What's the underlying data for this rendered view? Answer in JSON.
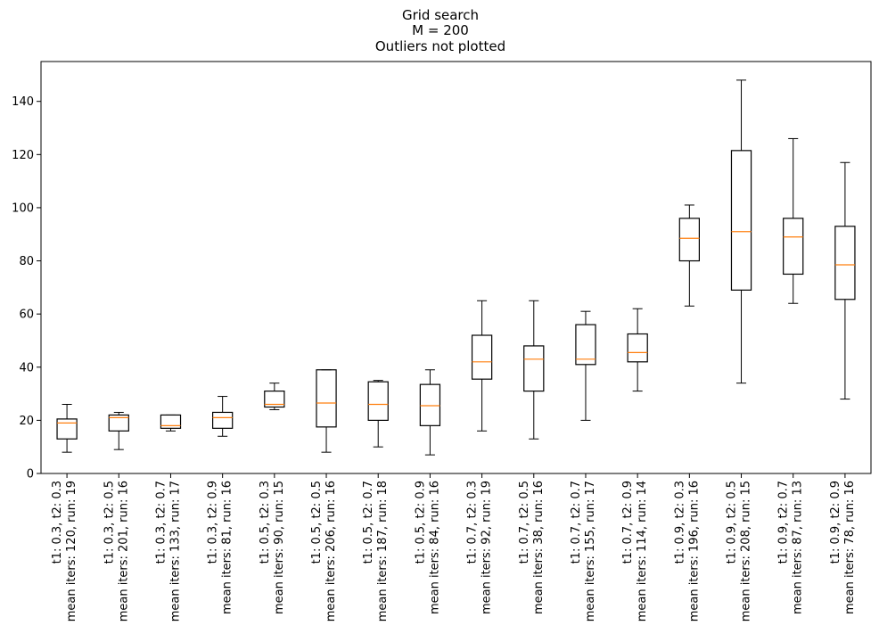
{
  "chart_data": {
    "type": "boxplot",
    "title_lines": [
      "Grid search",
      "M = 200",
      "Outliers not plotted"
    ],
    "xlabel": "",
    "ylabel": "",
    "ylim": [
      0,
      155
    ],
    "yticks": [
      0,
      20,
      40,
      60,
      80,
      100,
      120,
      140
    ],
    "grid": false,
    "legend": "none",
    "colors": {
      "box": "#000000",
      "median": "#ff7f0e",
      "whisker": "#000000"
    },
    "categories": [
      [
        "t1: 0.3, t2: 0.3",
        "mean iters: 120, run: 19"
      ],
      [
        "t1: 0.3, t2: 0.5",
        "mean iters: 201, run: 16"
      ],
      [
        "t1: 0.3, t2: 0.7",
        "mean iters: 133, run: 17"
      ],
      [
        "t1: 0.3, t2: 0.9",
        "mean iters: 81, run: 16"
      ],
      [
        "t1: 0.5, t2: 0.3",
        "mean iters: 90, run: 15"
      ],
      [
        "t1: 0.5, t2: 0.5",
        "mean iters: 206, run: 16"
      ],
      [
        "t1: 0.5, t2: 0.7",
        "mean iters: 187, run: 18"
      ],
      [
        "t1: 0.5, t2: 0.9",
        "mean iters: 84, run: 16"
      ],
      [
        "t1: 0.7, t2: 0.3",
        "mean iters: 92, run: 19"
      ],
      [
        "t1: 0.7, t2: 0.5",
        "mean iters: 38, run: 16"
      ],
      [
        "t1: 0.7, t2: 0.7",
        "mean iters: 155, run: 17"
      ],
      [
        "t1: 0.7, t2: 0.9",
        "mean iters: 114, run: 14"
      ],
      [
        "t1: 0.9, t2: 0.3",
        "mean iters: 196, run: 16"
      ],
      [
        "t1: 0.9, t2: 0.5",
        "mean iters: 208, run: 15"
      ],
      [
        "t1: 0.9, t2: 0.7",
        "mean iters: 87, run: 13"
      ],
      [
        "t1: 0.9, t2: 0.9",
        "mean iters: 78, run: 16"
      ]
    ],
    "boxes": [
      {
        "whislo": 8,
        "q1": 13,
        "med": 19,
        "q3": 20.5,
        "whishi": 26
      },
      {
        "whislo": 9,
        "q1": 16,
        "med": 21,
        "q3": 22,
        "whishi": 23
      },
      {
        "whislo": 16,
        "q1": 17,
        "med": 18,
        "q3": 22,
        "whishi": 22
      },
      {
        "whislo": 14,
        "q1": 17,
        "med": 21,
        "q3": 23,
        "whishi": 29
      },
      {
        "whislo": 24,
        "q1": 25,
        "med": 26,
        "q3": 31,
        "whishi": 34
      },
      {
        "whislo": 8,
        "q1": 17.5,
        "med": 26.5,
        "q3": 39,
        "whishi": 39
      },
      {
        "whislo": 10,
        "q1": 20,
        "med": 26,
        "q3": 34.5,
        "whishi": 35
      },
      {
        "whislo": 7,
        "q1": 18,
        "med": 25.5,
        "q3": 33.5,
        "whishi": 39
      },
      {
        "whislo": 16,
        "q1": 35.5,
        "med": 42,
        "q3": 52,
        "whishi": 65
      },
      {
        "whislo": 13,
        "q1": 31,
        "med": 43,
        "q3": 48,
        "whishi": 65
      },
      {
        "whislo": 20,
        "q1": 41,
        "med": 43,
        "q3": 56,
        "whishi": 61
      },
      {
        "whislo": 31,
        "q1": 42,
        "med": 45.5,
        "q3": 52.5,
        "whishi": 62
      },
      {
        "whislo": 63,
        "q1": 80,
        "med": 88.5,
        "q3": 96,
        "whishi": 101
      },
      {
        "whislo": 34,
        "q1": 69,
        "med": 91,
        "q3": 121.5,
        "whishi": 148
      },
      {
        "whislo": 64,
        "q1": 75,
        "med": 89,
        "q3": 96,
        "whishi": 126
      },
      {
        "whislo": 28,
        "q1": 65.5,
        "med": 78.5,
        "q3": 93,
        "whishi": 117
      }
    ]
  }
}
